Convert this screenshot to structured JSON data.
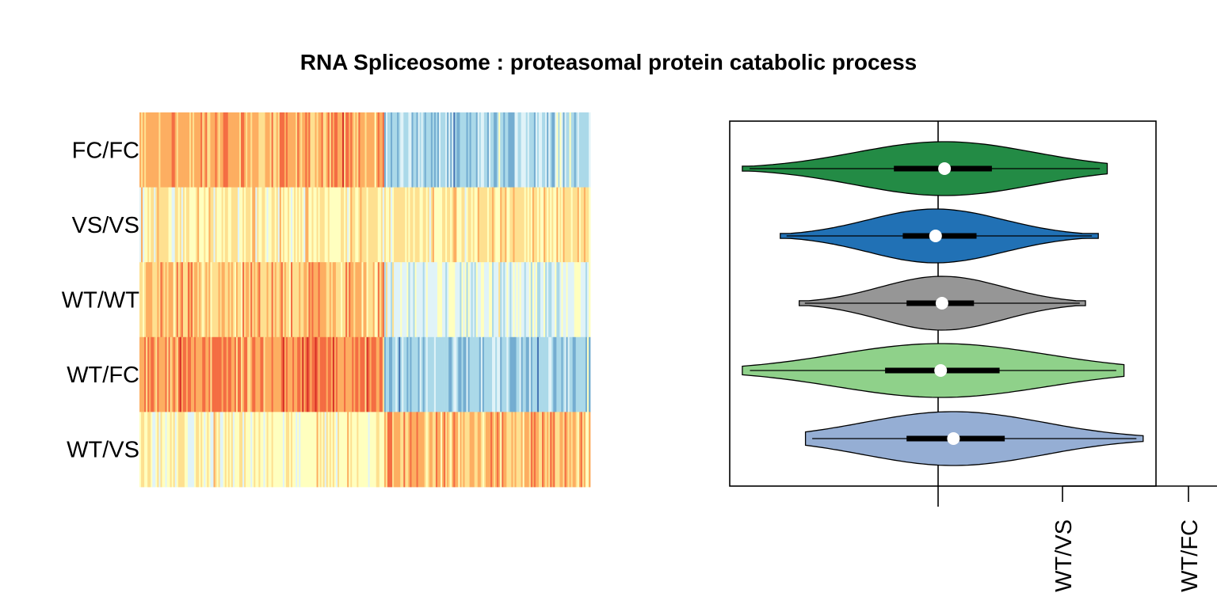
{
  "title": "RNA Spliceosome : proteasomal protein catabolic process",
  "chart_data": [
    {
      "type": "heatmap",
      "rows": [
        "FC/FC",
        "VS/VS",
        "WT/WT",
        "WT/FC",
        "WT/VS"
      ],
      "n_columns": 280,
      "palette": [
        "#d73027",
        "#f46d43",
        "#fdae61",
        "#fee090",
        "#ffffbf",
        "#e0f3f8",
        "#abd9e9",
        "#74add1",
        "#4575b4"
      ],
      "row_profiles": [
        {
          "label": "FC/FC",
          "left_mean": 0.28,
          "right_mean": 0.72,
          "split": 0.54
        },
        {
          "label": "VS/VS",
          "left_mean": 0.45,
          "right_mean": 0.42,
          "split": 0.54
        },
        {
          "label": "WT/WT",
          "left_mean": 0.33,
          "right_mean": 0.58,
          "split": 0.54
        },
        {
          "label": "WT/FC",
          "left_mean": 0.22,
          "right_mean": 0.74,
          "split": 0.54
        },
        {
          "label": "WT/VS",
          "left_mean": 0.48,
          "right_mean": 0.32,
          "split": 0.54
        }
      ]
    },
    {
      "type": "violin",
      "series": [
        {
          "name": "FC/FC",
          "color": "#238b45",
          "min": -1.55,
          "q1": -0.35,
          "median": 0.05,
          "q3": 0.42,
          "max": 1.32
        },
        {
          "name": "VS/VS",
          "color": "#2171b5",
          "min": -1.25,
          "q1": -0.28,
          "median": -0.02,
          "q3": 0.3,
          "max": 1.25
        },
        {
          "name": "WT/WT",
          "color": "#969696",
          "min": -1.1,
          "q1": -0.25,
          "median": 0.03,
          "q3": 0.28,
          "max": 1.15
        },
        {
          "name": "WT/FC",
          "color": "#8fd18a",
          "min": -1.55,
          "q1": -0.42,
          "median": 0.02,
          "q3": 0.48,
          "max": 1.45
        },
        {
          "name": "WT/VS",
          "color": "#95aed4",
          "min": -1.05,
          "q1": -0.25,
          "median": 0.12,
          "q3": 0.52,
          "max": 1.6
        }
      ],
      "xlim": [
        -1.65,
        1.7
      ],
      "reference_line": 0,
      "extra_axis_ticks": [
        "WT/VS",
        "WT/FC"
      ]
    }
  ]
}
